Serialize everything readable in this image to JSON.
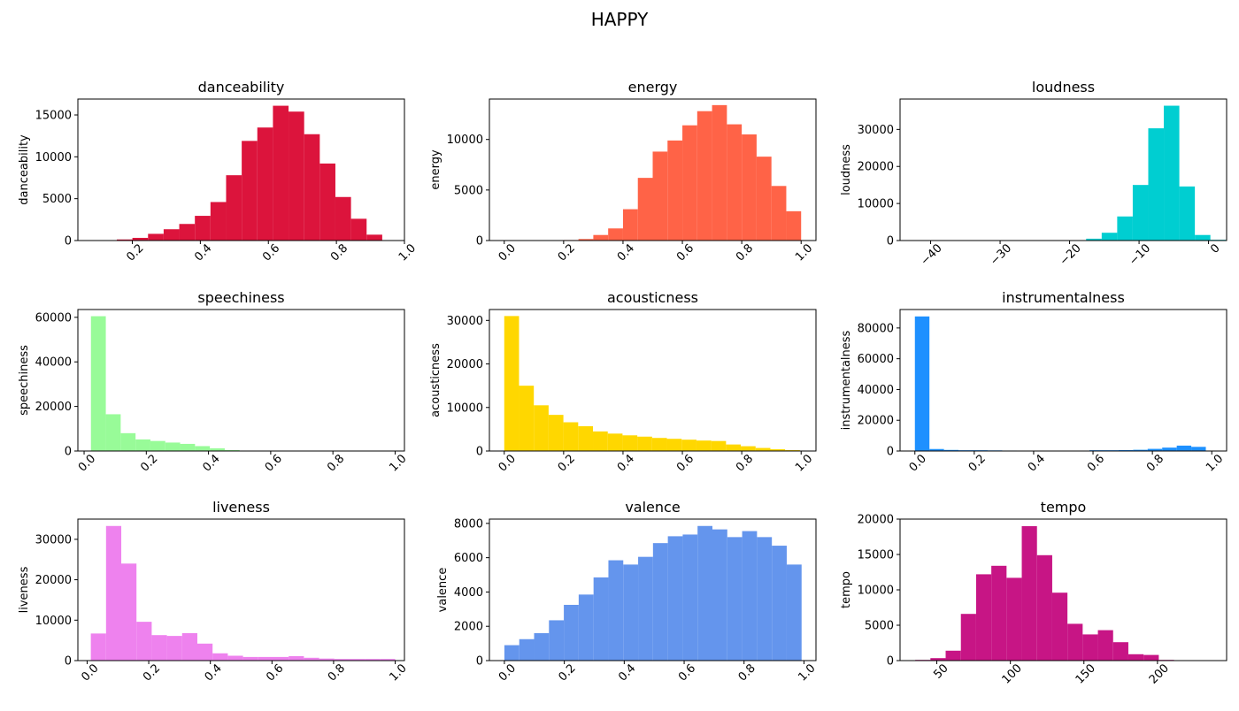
{
  "figure": {
    "title": "HAPPY"
  },
  "chart_data": [
    {
      "type": "bar",
      "title": "danceability",
      "ylabel": "danceability",
      "color": "#dc143c",
      "bin_start": 0.0626,
      "bin_width": 0.0459,
      "tick_rotation": 45,
      "values": [
        0,
        50,
        130,
        320,
        800,
        1350,
        1980,
        2950,
        4600,
        7800,
        11900,
        13500,
        16100,
        15400,
        12700,
        9200,
        5200,
        2600,
        700
      ],
      "xlim": [
        0.04,
        1.0
      ],
      "ylim": [
        0,
        16900
      ],
      "xticks": [
        0.2,
        0.4,
        0.6,
        0.8,
        1.0
      ],
      "xtick_labels": [
        "0.2",
        "0.4",
        "0.6",
        "0.8",
        "1.0"
      ],
      "yticks": [
        0,
        5000,
        10000,
        15000
      ],
      "ytick_labels": [
        "0",
        "5000",
        "10000",
        "15000"
      ]
    },
    {
      "type": "bar",
      "title": "energy",
      "ylabel": "energy",
      "color": "#ff6347",
      "bin_start": 0.0,
      "bin_width": 0.05,
      "tick_rotation": 45,
      "values": [
        0,
        0,
        0,
        0,
        50,
        150,
        550,
        1200,
        3100,
        6200,
        8800,
        9900,
        11400,
        12800,
        13400,
        11500,
        10500,
        8300,
        5400,
        2900
      ],
      "xlim": [
        -0.05,
        1.05
      ],
      "ylim": [
        0,
        14000
      ],
      "xticks": [
        0.0,
        0.2,
        0.4,
        0.6,
        0.8,
        1.0
      ],
      "xtick_labels": [
        "0.0",
        "0.2",
        "0.4",
        "0.6",
        "0.8",
        "1.0"
      ],
      "yticks": [
        0,
        5000,
        10000
      ],
      "ytick_labels": [
        "0",
        "5000",
        "10000"
      ]
    },
    {
      "type": "bar",
      "title": "loudness",
      "ylabel": "loudness",
      "color": "#00ced1",
      "bin_start": -42.2,
      "bin_width": 2.235,
      "tick_rotation": 45,
      "values": [
        0,
        0,
        0,
        0,
        0,
        0,
        0,
        0,
        0,
        0,
        0,
        500,
        2100,
        6500,
        15000,
        30300,
        36400,
        14600,
        1500,
        200
      ],
      "xlim": [
        -44.4,
        2.6
      ],
      "ylim": [
        0,
        38200
      ],
      "xticks": [
        -40,
        -30,
        -20,
        -10,
        0
      ],
      "xtick_labels": [
        "−40",
        "−30",
        "−20",
        "−10",
        "0"
      ],
      "yticks": [
        0,
        10000,
        20000,
        30000
      ],
      "ytick_labels": [
        "0",
        "10000",
        "20000",
        "30000"
      ]
    },
    {
      "type": "bar",
      "title": "speechiness",
      "ylabel": "speechiness",
      "color": "#98fb98",
      "bin_start": 0.022,
      "bin_width": 0.0478,
      "tick_rotation": 45,
      "values": [
        60500,
        16500,
        8000,
        5200,
        4500,
        3800,
        3200,
        2200,
        1200,
        400,
        150,
        60,
        30,
        20,
        10,
        10,
        5,
        5,
        5,
        5
      ],
      "xlim": [
        -0.02,
        1.03
      ],
      "ylim": [
        0,
        63500
      ],
      "xticks": [
        0.0,
        0.2,
        0.4,
        0.6,
        0.8,
        1.0
      ],
      "xtick_labels": [
        "0.0",
        "0.2",
        "0.4",
        "0.6",
        "0.8",
        "1.0"
      ],
      "yticks": [
        0,
        20000,
        40000,
        60000
      ],
      "ytick_labels": [
        "0",
        "20000",
        "40000",
        "60000"
      ]
    },
    {
      "type": "bar",
      "title": "acousticness",
      "ylabel": "acousticness",
      "color": "#ffd700",
      "bin_start": 0.0,
      "bin_width": 0.0498,
      "tick_rotation": 45,
      "values": [
        31000,
        15000,
        10500,
        8300,
        6600,
        5700,
        4500,
        4000,
        3600,
        3300,
        3000,
        2800,
        2600,
        2400,
        2300,
        1500,
        1100,
        700,
        400,
        200
      ],
      "xlim": [
        -0.05,
        1.05
      ],
      "ylim": [
        0,
        32500
      ],
      "xticks": [
        0.0,
        0.2,
        0.4,
        0.6,
        0.8,
        1.0
      ],
      "xtick_labels": [
        "0.0",
        "0.2",
        "0.4",
        "0.6",
        "0.8",
        "1.0"
      ],
      "yticks": [
        0,
        10000,
        20000,
        30000
      ],
      "ytick_labels": [
        "0",
        "10000",
        "20000",
        "30000"
      ]
    },
    {
      "type": "bar",
      "title": "instrumentalness",
      "ylabel": "instrumentalness",
      "color": "#1e90ff",
      "bin_start": 0.0,
      "bin_width": 0.049,
      "tick_rotation": 45,
      "values": [
        87500,
        1300,
        700,
        500,
        500,
        400,
        300,
        250,
        250,
        250,
        250,
        250,
        500,
        500,
        600,
        800,
        1400,
        2200,
        3500,
        2700
      ],
      "xlim": [
        -0.05,
        1.05
      ],
      "ylim": [
        0,
        92000
      ],
      "xticks": [
        0.0,
        0.2,
        0.4,
        0.6,
        0.8,
        1.0
      ],
      "xtick_labels": [
        "0.0",
        "0.2",
        "0.4",
        "0.6",
        "0.8",
        "1.0"
      ],
      "yticks": [
        0,
        20000,
        40000,
        60000,
        80000
      ],
      "ytick_labels": [
        "0",
        "20000",
        "40000",
        "60000",
        "80000"
      ]
    },
    {
      "type": "bar",
      "title": "liveness",
      "ylabel": "liveness",
      "color": "#ee82ee",
      "bin_start": 0.012,
      "bin_width": 0.0494,
      "tick_rotation": 45,
      "values": [
        6700,
        33300,
        24000,
        9600,
        6300,
        6100,
        6800,
        4200,
        1800,
        1200,
        900,
        900,
        900,
        1100,
        700,
        500,
        400,
        400,
        400,
        400
      ],
      "xlim": [
        -0.03,
        1.03
      ],
      "ylim": [
        0,
        35000
      ],
      "xticks": [
        0.0,
        0.2,
        0.4,
        0.6,
        0.8,
        1.0
      ],
      "xtick_labels": [
        "0.0",
        "0.2",
        "0.4",
        "0.6",
        "0.8",
        "1.0"
      ],
      "yticks": [
        0,
        10000,
        20000,
        30000
      ],
      "ytick_labels": [
        "0",
        "10000",
        "20000",
        "30000"
      ]
    },
    {
      "type": "bar",
      "title": "valence",
      "ylabel": "valence",
      "color": "#6495ed",
      "bin_start": 0.0,
      "bin_width": 0.0496,
      "tick_rotation": 45,
      "values": [
        900,
        1250,
        1600,
        2350,
        3250,
        3850,
        4850,
        5850,
        5600,
        6050,
        6850,
        7250,
        7350,
        7850,
        7650,
        7200,
        7550,
        7200,
        6700,
        5600
      ],
      "xlim": [
        -0.05,
        1.04
      ],
      "ylim": [
        0,
        8250
      ],
      "xticks": [
        0.0,
        0.2,
        0.4,
        0.6,
        0.8,
        1.0
      ],
      "xtick_labels": [
        "0.0",
        "0.2",
        "0.4",
        "0.6",
        "0.8",
        "1.0"
      ],
      "yticks": [
        0,
        2000,
        4000,
        6000,
        8000
      ],
      "ytick_labels": [
        "0",
        "2000",
        "4000",
        "6000",
        "8000"
      ]
    },
    {
      "type": "bar",
      "title": "tempo",
      "ylabel": "tempo",
      "color": "#c71585",
      "bin_start": 35.3,
      "bin_width": 10.35,
      "tick_rotation": 45,
      "values": [
        100,
        350,
        1400,
        6600,
        12200,
        13400,
        11700,
        19000,
        14900,
        9600,
        5200,
        3700,
        4300,
        2600,
        900,
        800,
        100,
        0,
        0,
        0
      ],
      "xlim": [
        25,
        247
      ],
      "ylim": [
        0,
        20000
      ],
      "xticks": [
        50,
        100,
        150,
        200
      ],
      "xtick_labels": [
        "50",
        "100",
        "150",
        "200"
      ],
      "yticks": [
        0,
        5000,
        10000,
        15000,
        20000
      ],
      "ytick_labels": [
        "0",
        "5000",
        "10000",
        "15000",
        "20000"
      ]
    }
  ]
}
